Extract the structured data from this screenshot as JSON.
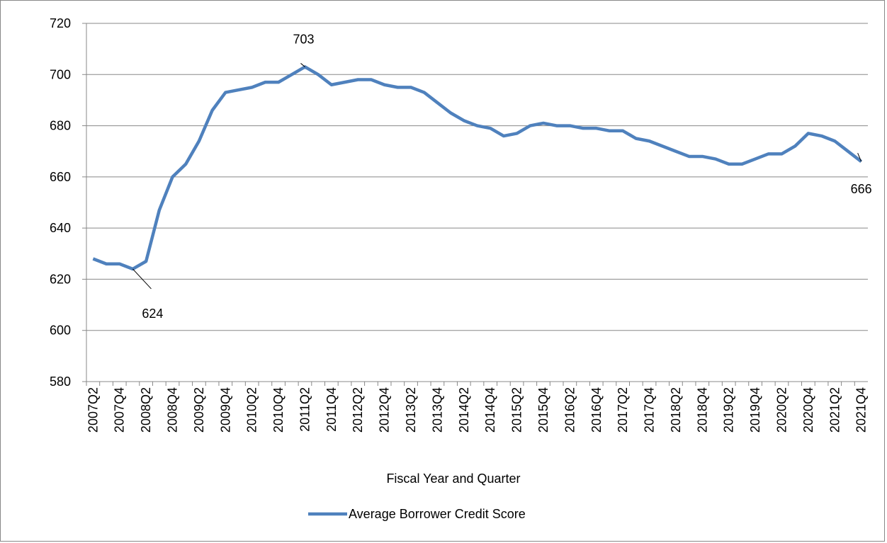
{
  "chart_data": {
    "type": "line",
    "x_label": "Fiscal Year and Quarter",
    "categories": [
      "2007Q2",
      null,
      "2007Q4",
      null,
      "2008Q2",
      null,
      "2008Q4",
      null,
      "2009Q2",
      null,
      "2009Q4",
      null,
      "2010Q2",
      null,
      "2010Q4",
      null,
      "2011Q2",
      null,
      "2011Q4",
      null,
      "2012Q2",
      null,
      "2012Q4",
      null,
      "2013Q2",
      null,
      "2013Q4",
      null,
      "2014Q2",
      null,
      "2014Q4",
      null,
      "2015Q2",
      null,
      "2015Q4",
      null,
      "2016Q2",
      null,
      "2016Q4",
      null,
      "2017Q2",
      null,
      "2017Q4",
      null,
      "2018Q2",
      null,
      "2018Q4",
      null,
      "2019Q2",
      null,
      "2019Q4",
      null,
      "2020Q2",
      null,
      "2020Q4",
      null,
      "2021Q2",
      null,
      "2021Q4"
    ],
    "series": [
      {
        "name": "Average Borrower Credit Score",
        "color": "#4f81bd",
        "values": [
          628,
          626,
          626,
          624,
          627,
          647,
          660,
          665,
          674,
          686,
          693,
          694,
          695,
          697,
          697,
          700,
          703,
          700,
          696,
          697,
          698,
          698,
          696,
          695,
          695,
          693,
          689,
          685,
          682,
          680,
          679,
          676,
          677,
          680,
          681,
          680,
          680,
          679,
          679,
          678,
          678,
          675,
          674,
          672,
          670,
          668,
          668,
          667,
          665,
          665,
          667,
          669,
          669,
          672,
          677,
          676,
          674,
          670,
          666
        ]
      }
    ],
    "ylim": [
      580,
      720
    ],
    "yticks": [
      580,
      600,
      620,
      640,
      660,
      680,
      700,
      720
    ],
    "grid": true,
    "legend": "bottom"
  }
}
